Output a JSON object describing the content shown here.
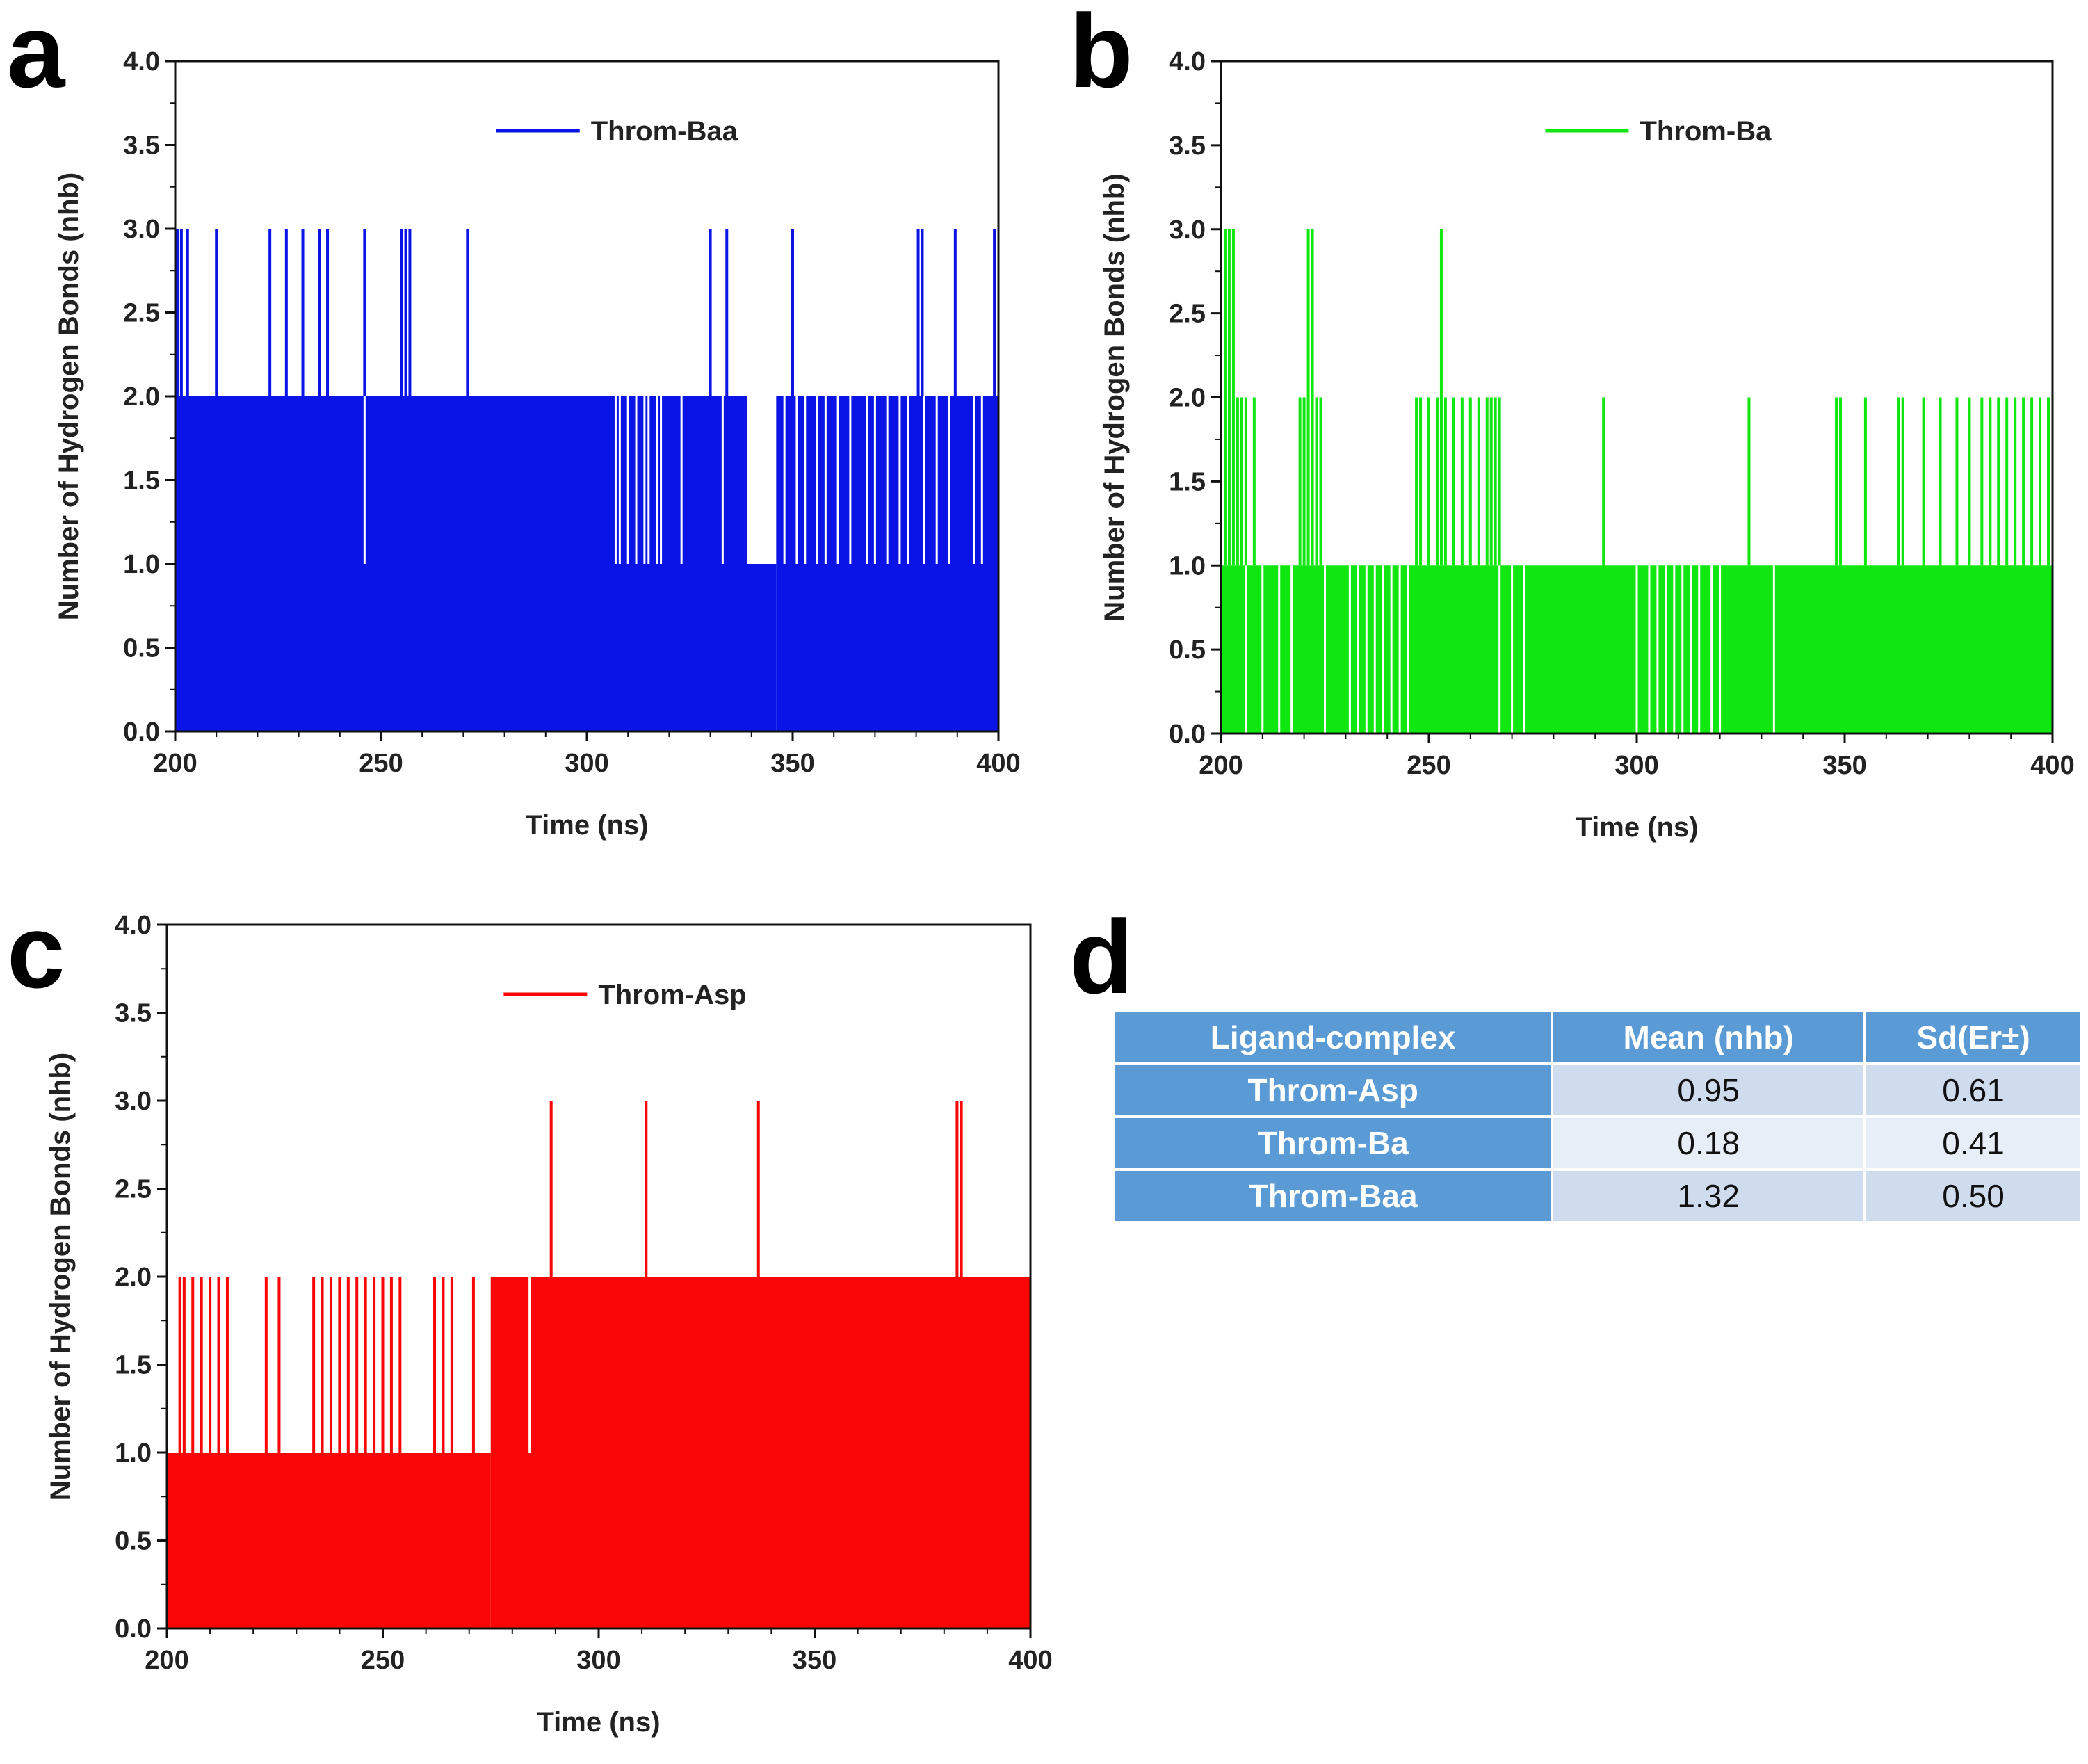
{
  "chart_data": [
    {
      "type": "line",
      "panel": "a",
      "title": "",
      "xlabel": "Time (ns)",
      "ylabel": "Number of Hydrogen Bonds (nhb)",
      "xlim": [
        200,
        400
      ],
      "ylim": [
        0.0,
        4.0
      ],
      "xticks": [
        "200",
        "250",
        "300",
        "350",
        "400"
      ],
      "yticks": [
        "0.0",
        "0.5",
        "1.0",
        "1.5",
        "2.0",
        "2.5",
        "3.0",
        "3.5",
        "4.0"
      ],
      "legend": {
        "label": "Throm-Baa",
        "position": "top-center"
      },
      "color": "#0a14e6",
      "series": [
        {
          "name": "Throm-Baa",
          "baseline_segments": [
            [
              200,
              339,
              2
            ],
            [
              339,
              346,
              1
            ],
            [
              346,
              400,
              2
            ]
          ],
          "spikes_to_3": [
            200.5,
            201.5,
            203,
            210,
            223,
            227,
            231,
            235,
            237,
            246,
            255,
            256,
            257,
            271,
            330,
            334,
            350,
            380.5,
            381.5,
            389.5,
            399
          ],
          "dips_to_1": [
            246,
            307,
            308,
            310,
            312,
            314,
            315,
            317,
            318,
            323,
            333,
            348,
            351,
            353,
            356,
            358,
            361,
            364,
            368,
            370,
            373,
            376,
            378,
            382,
            385,
            388,
            394,
            396
          ]
        }
      ]
    },
    {
      "type": "line",
      "panel": "b",
      "title": "",
      "xlabel": "Time (ns)",
      "ylabel": "Number of Hydrogen Bonds (nhb)",
      "xlim": [
        200,
        400
      ],
      "ylim": [
        0.0,
        4.0
      ],
      "xticks": [
        "200",
        "250",
        "300",
        "350",
        "400"
      ],
      "yticks": [
        "0.0",
        "0.5",
        "1.0",
        "1.5",
        "2.0",
        "2.5",
        "3.0",
        "3.5",
        "4.0"
      ],
      "legend": {
        "label": "Throm-Ba",
        "position": "top-center"
      },
      "color": "#10e610",
      "series": [
        {
          "name": "Throm-Ba",
          "baseline_segments": [
            [
              200,
              400,
              1
            ]
          ],
          "spikes_to_3": [
            201,
            202,
            203,
            221,
            222,
            253
          ],
          "spikes_to_2": [
            204,
            205,
            206,
            208,
            219,
            220,
            223,
            224,
            247,
            248,
            250,
            252,
            254,
            256,
            258,
            260,
            262,
            264,
            265,
            266,
            267,
            292,
            327,
            348,
            349,
            355,
            363,
            364,
            369,
            373,
            377,
            380,
            383,
            385,
            387,
            389,
            391,
            393,
            395,
            397,
            399
          ],
          "dips_to_0": [
            206,
            210,
            214,
            217,
            225,
            231,
            233,
            235,
            237,
            239,
            241,
            243,
            245,
            267,
            270,
            273,
            300,
            303,
            305,
            307,
            309,
            311,
            313,
            315,
            318,
            320,
            333
          ]
        }
      ]
    },
    {
      "type": "line",
      "panel": "c",
      "title": "",
      "xlabel": "Time (ns)",
      "ylabel": "Number of Hydrogen Bonds (nhb)",
      "xlim": [
        200,
        400
      ],
      "ylim": [
        0.0,
        4.0
      ],
      "xticks": [
        "200",
        "250",
        "300",
        "350",
        "400"
      ],
      "yticks": [
        "0.0",
        "0.5",
        "1.0",
        "1.5",
        "2.0",
        "2.5",
        "3.0",
        "3.5",
        "4.0"
      ],
      "legend": {
        "label": "Throm-Asp",
        "position": "top-center"
      },
      "color": "#fa0505",
      "series": [
        {
          "name": "Throm-Asp",
          "baseline_segments": [
            [
              200,
              275,
              1
            ],
            [
              275,
              400,
              2
            ]
          ],
          "spikes_to_2": [
            203,
            204,
            206,
            208,
            210,
            212,
            214,
            223,
            226,
            234,
            236,
            238,
            240,
            242,
            244,
            246,
            248,
            250,
            252,
            254,
            262,
            264,
            266,
            271
          ],
          "spikes_to_3": [
            289,
            311,
            337,
            383,
            384
          ],
          "dips_to_1": [
            284
          ]
        }
      ]
    }
  ],
  "table": {
    "panel_letter": "d",
    "headers": [
      "Ligand-complex",
      "Mean (nhb)",
      "Sd(Er±)"
    ],
    "rows": [
      {
        "name": "Throm-Asp",
        "mean": "0.95",
        "sd": "0.61"
      },
      {
        "name": "Throm-Ba",
        "mean": "0.18",
        "sd": "0.41"
      },
      {
        "name": "Throm-Baa",
        "mean": "1.32",
        "sd": "0.50"
      }
    ]
  }
}
